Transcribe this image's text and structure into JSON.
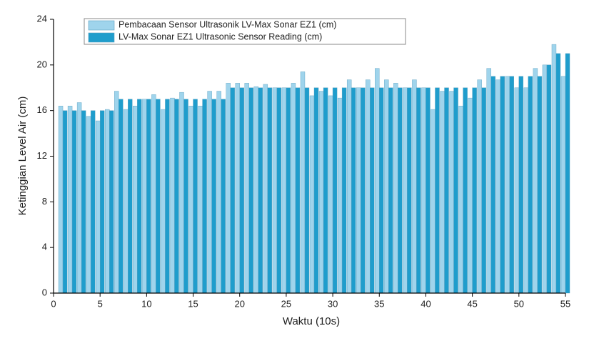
{
  "chart_data": {
    "type": "bar",
    "xlabel": "Waktu (10s)",
    "ylabel": "Ketinggian Level Air (cm)",
    "x": [
      1,
      2,
      3,
      4,
      5,
      6,
      7,
      8,
      9,
      10,
      11,
      12,
      13,
      14,
      15,
      16,
      17,
      18,
      19,
      20,
      21,
      22,
      23,
      24,
      25,
      26,
      27,
      28,
      29,
      30,
      31,
      32,
      33,
      34,
      35,
      36,
      37,
      38,
      39,
      40,
      41,
      42,
      43,
      44,
      45,
      46,
      47,
      48,
      49,
      50,
      51,
      52,
      53,
      54,
      55
    ],
    "series": [
      {
        "name": "Pembacaan Sensor Ultrasonik LV-Max Sonar EZ1 (cm)",
        "color": "#9fd4ec",
        "values": [
          16.4,
          16.4,
          16.7,
          15.5,
          15.1,
          16.1,
          17.7,
          16.1,
          16.4,
          17.0,
          17.4,
          16.1,
          17.1,
          17.6,
          16.4,
          16.4,
          17.7,
          17.7,
          18.4,
          18.4,
          18.4,
          18.1,
          18.3,
          18.0,
          18.0,
          18.4,
          19.4,
          17.3,
          17.7,
          17.3,
          17.1,
          18.7,
          18.0,
          18.7,
          19.7,
          18.7,
          18.4,
          18.0,
          18.7,
          18.0,
          16.1,
          17.7,
          17.7,
          16.4,
          17.1,
          18.7,
          19.7,
          18.7,
          19.0,
          18.0,
          18.0,
          19.7,
          20.0,
          21.8,
          19.0
        ]
      },
      {
        "name": "LV-Max Sonar EZ1 Ultrasonic Sensor Reading (cm)",
        "color": "#1f9dcc",
        "values": [
          16,
          16,
          16,
          16,
          16,
          16,
          17,
          17,
          17,
          17,
          17,
          17,
          17,
          17,
          17,
          17,
          17,
          17,
          18,
          18,
          18,
          18,
          18,
          18,
          18,
          18,
          18,
          18,
          18,
          18,
          18,
          18,
          18,
          18,
          18,
          18,
          18,
          18,
          18,
          18,
          18,
          18,
          18,
          18,
          18,
          18,
          19,
          19,
          19,
          19,
          19,
          19,
          20,
          21,
          21
        ]
      }
    ],
    "xlim": [
      0,
      55
    ],
    "xticks": [
      0,
      5,
      10,
      15,
      20,
      25,
      30,
      35,
      40,
      45,
      50,
      55
    ],
    "ylim": [
      0,
      24
    ],
    "yticks": [
      0,
      4,
      8,
      12,
      16,
      20,
      24
    ]
  }
}
